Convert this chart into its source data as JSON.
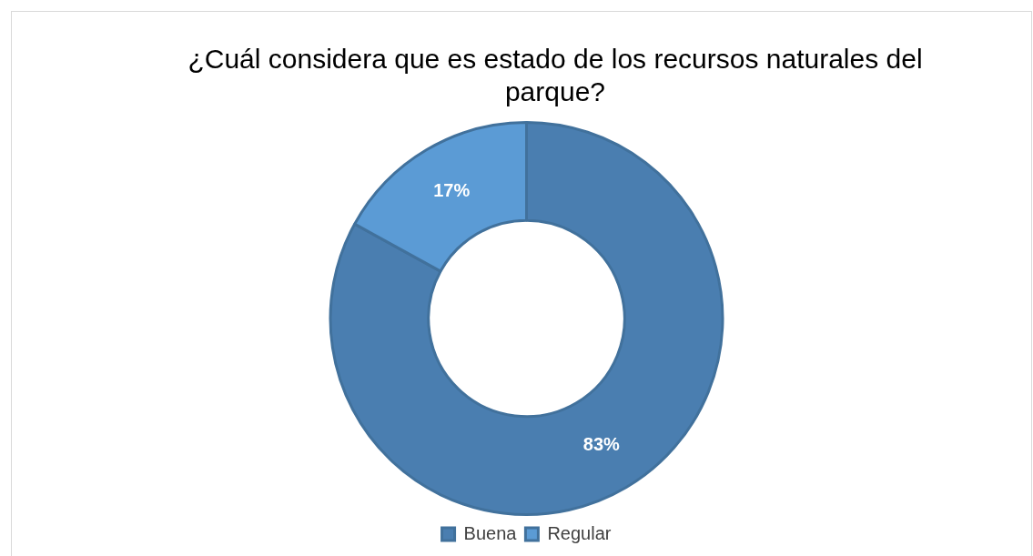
{
  "chart_data": {
    "type": "donut",
    "title": "¿Cuál considera que es estado de los recursos naturales del parque?",
    "categories": [
      "Buena",
      "Regular"
    ],
    "values": [
      83,
      17
    ],
    "colors": [
      "#4a7eb0",
      "#5b9bd5"
    ],
    "value_labels": [
      "83%",
      "17%"
    ],
    "legend": "bottom"
  }
}
